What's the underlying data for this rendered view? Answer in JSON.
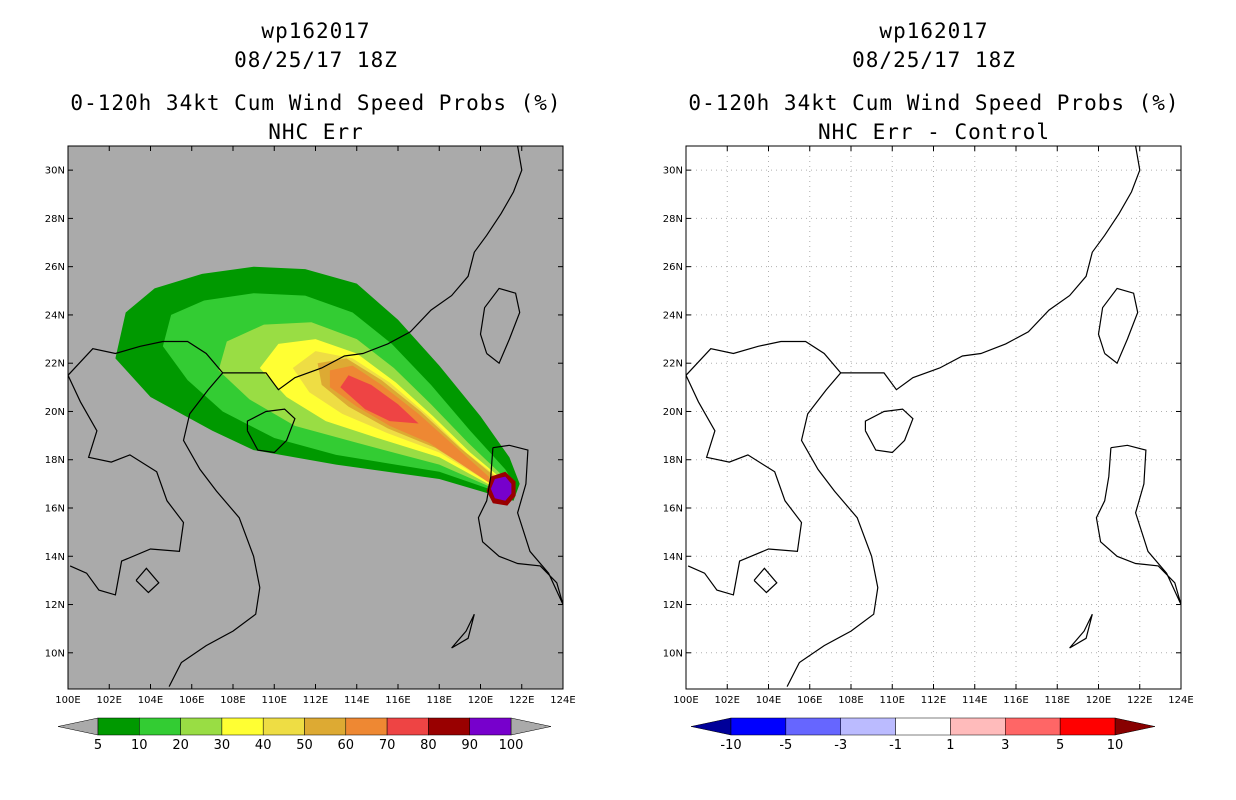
{
  "panels": [
    {
      "id": "left",
      "title_lines": [
        "wp162017",
        "08/25/17 18Z",
        "0-120h 34kt Cum Wind Speed Probs (%)",
        "NHC Err"
      ],
      "background": "#aaaaaa",
      "colorbar": {
        "labels": [
          "5",
          "10",
          "20",
          "30",
          "40",
          "50",
          "60",
          "70",
          "80",
          "90",
          "100"
        ],
        "colors": [
          "#009900",
          "#33cc33",
          "#99dd44",
          "#ffff33",
          "#eedd44",
          "#ddaa33",
          "#ee8833",
          "#ee4444",
          "#990000",
          "#7700cc"
        ],
        "end_low": "#aaaaaa",
        "end_high": "#aaaaaa"
      }
    },
    {
      "id": "right",
      "title_lines": [
        "wp162017",
        "08/25/17 18Z",
        "0-120h 34kt Cum Wind Speed Probs (%)",
        "NHC Err - Control"
      ],
      "background": "#ffffff",
      "colorbar": {
        "labels": [
          "-10",
          "-5",
          "-3",
          "-1",
          "1",
          "3",
          "5",
          "10"
        ],
        "colors": [
          "#0000ff",
          "#6666ff",
          "#bbbbff",
          "#ffffff",
          "#ffbbbb",
          "#ff6666",
          "#ff0000"
        ],
        "end_low": "#000099",
        "end_high": "#880000"
      }
    }
  ],
  "chart_data": {
    "type": "heatmap",
    "title": "0-120h 34kt Cum Wind Speed Probs (%)",
    "storm_id": "wp162017",
    "datetime": "08/25/17 18Z",
    "xlim": [
      100,
      124
    ],
    "ylim": [
      8.5,
      31
    ],
    "x_ticks": [
      "100E",
      "102E",
      "104E",
      "106E",
      "108E",
      "110E",
      "112E",
      "114E",
      "116E",
      "118E",
      "120E",
      "122E",
      "124E"
    ],
    "y_ticks": [
      "10N",
      "12N",
      "14N",
      "16N",
      "18N",
      "20N",
      "22N",
      "24N",
      "26N",
      "28N",
      "30N"
    ],
    "prob_levels": [
      5,
      10,
      20,
      30,
      40,
      50,
      60,
      70,
      80,
      90,
      100
    ],
    "storm_position": [
      121.0,
      16.9
    ],
    "swath_contours": [
      {
        "level": 5,
        "lonlat": [
          [
            121.6,
            16.3
          ],
          [
            118,
            17.2
          ],
          [
            113,
            17.8
          ],
          [
            109,
            18.4
          ],
          [
            107,
            19.2
          ],
          [
            104,
            20.6
          ],
          [
            102.3,
            22.2
          ],
          [
            102.8,
            24.1
          ],
          [
            104.2,
            25.1
          ],
          [
            106.5,
            25.7
          ],
          [
            109,
            26.0
          ],
          [
            111.5,
            25.9
          ],
          [
            114,
            25.3
          ],
          [
            116,
            23.8
          ],
          [
            118,
            21.9
          ],
          [
            120,
            19.8
          ],
          [
            121.4,
            18.1
          ],
          [
            121.9,
            17.0
          ]
        ]
      },
      {
        "level": 10,
        "lonlat": [
          [
            121.4,
            16.5
          ],
          [
            118,
            17.5
          ],
          [
            113,
            18.2
          ],
          [
            110,
            18.9
          ],
          [
            107.5,
            20.0
          ],
          [
            105.8,
            21.3
          ],
          [
            104.6,
            22.7
          ],
          [
            105.0,
            24.0
          ],
          [
            106.6,
            24.6
          ],
          [
            109,
            24.9
          ],
          [
            111.5,
            24.8
          ],
          [
            113.8,
            24.1
          ],
          [
            115.7,
            22.8
          ],
          [
            117.6,
            21.1
          ],
          [
            119.5,
            19.2
          ],
          [
            121.2,
            17.6
          ],
          [
            121.7,
            16.9
          ]
        ]
      },
      {
        "level": 20,
        "lonlat": [
          [
            121.2,
            16.6
          ],
          [
            118,
            17.8
          ],
          [
            114,
            18.7
          ],
          [
            111,
            19.4
          ],
          [
            108.8,
            20.5
          ],
          [
            107.3,
            21.7
          ],
          [
            107.7,
            22.9
          ],
          [
            109.5,
            23.6
          ],
          [
            111.8,
            23.7
          ],
          [
            114,
            23.0
          ],
          [
            115.8,
            21.8
          ],
          [
            117.6,
            20.3
          ],
          [
            119.4,
            18.7
          ],
          [
            121.0,
            17.4
          ]
        ]
      },
      {
        "level": 30,
        "lonlat": [
          [
            121.0,
            16.7
          ],
          [
            118,
            18.1
          ],
          [
            115,
            18.9
          ],
          [
            112.5,
            19.6
          ],
          [
            110.6,
            20.6
          ],
          [
            109.3,
            21.8
          ],
          [
            110.2,
            22.8
          ],
          [
            112,
            23.0
          ],
          [
            114,
            22.4
          ],
          [
            115.9,
            21.2
          ],
          [
            117.7,
            19.8
          ],
          [
            119.5,
            18.3
          ],
          [
            120.9,
            17.3
          ]
        ]
      },
      {
        "level": 40,
        "lonlat": [
          [
            120.9,
            16.8
          ],
          [
            118,
            18.3
          ],
          [
            115.5,
            19.1
          ],
          [
            113.3,
            19.9
          ],
          [
            111.7,
            20.8
          ],
          [
            110.9,
            21.8
          ],
          [
            112.0,
            22.5
          ],
          [
            113.8,
            22.2
          ],
          [
            115.6,
            21.2
          ],
          [
            117.5,
            19.8
          ],
          [
            119.3,
            18.3
          ],
          [
            120.8,
            17.3
          ]
        ]
      },
      {
        "level": 50,
        "lonlat": [
          [
            120.8,
            16.9
          ],
          [
            117.8,
            18.5
          ],
          [
            115.5,
            19.3
          ],
          [
            113.6,
            20.2
          ],
          [
            112.3,
            21.1
          ],
          [
            112.1,
            22.0
          ],
          [
            113.5,
            22.2
          ],
          [
            115.2,
            21.3
          ],
          [
            117.1,
            20.0
          ],
          [
            119.0,
            18.5
          ],
          [
            120.7,
            17.3
          ]
        ]
      },
      {
        "level": 60,
        "lonlat": [
          [
            120.5,
            17.0
          ],
          [
            117.5,
            18.7
          ],
          [
            115.6,
            19.4
          ],
          [
            114.0,
            20.2
          ],
          [
            112.7,
            21.0
          ],
          [
            112.7,
            21.7
          ],
          [
            113.8,
            21.9
          ],
          [
            115.2,
            21.1
          ],
          [
            117.0,
            19.9
          ],
          [
            118.7,
            18.6
          ],
          [
            120.4,
            17.3
          ]
        ]
      },
      {
        "level": 70,
        "lonlat": [
          [
            117.0,
            19.5
          ],
          [
            115.6,
            19.6
          ],
          [
            114.4,
            20.1
          ],
          [
            113.2,
            21.0
          ],
          [
            113.6,
            21.5
          ],
          [
            114.7,
            21.1
          ],
          [
            116.0,
            20.3
          ]
        ]
      },
      {
        "level": 80,
        "lonlat": [
          [
            121.7,
            16.5
          ],
          [
            121.3,
            16.1
          ],
          [
            120.6,
            16.2
          ],
          [
            120.3,
            16.7
          ],
          [
            120.5,
            17.3
          ],
          [
            121.2,
            17.5
          ],
          [
            121.7,
            17.1
          ]
        ]
      },
      {
        "level": 100,
        "lonlat": [
          [
            121.5,
            16.6
          ],
          [
            121.2,
            16.3
          ],
          [
            120.7,
            16.4
          ],
          [
            120.5,
            16.8
          ],
          [
            120.7,
            17.2
          ],
          [
            121.2,
            17.3
          ],
          [
            121.5,
            17.0
          ]
        ]
      }
    ],
    "difference_field": "0 everywhere (NHC Err - Control)"
  }
}
